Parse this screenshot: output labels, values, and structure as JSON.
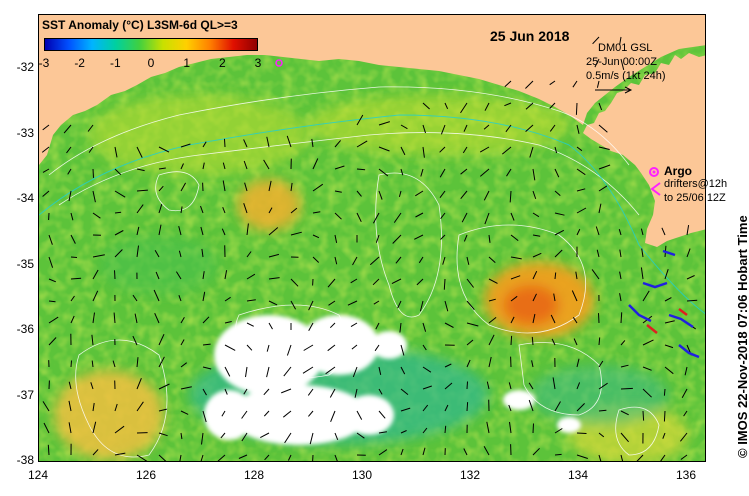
{
  "map": {
    "colorbar": {
      "title": "SST Anomaly (°C) L3SM-6d QL>=3",
      "ticks": [
        "-3",
        "-2",
        "-1",
        "0",
        "1",
        "2",
        "3"
      ],
      "colors": [
        "#0000b0",
        "#0050ff",
        "#00b4ff",
        "#00d0a0",
        "#40d040",
        "#c8e000",
        "#ffd000",
        "#ff8000",
        "#e01000",
        "#900000"
      ]
    },
    "date": "25 Jun 2018",
    "current_info": {
      "source": "DM01 GSL",
      "time": "25-Jun 00:00Z",
      "scale": "0.5m/s (1kt 24h)"
    },
    "argo": {
      "label": "Argo",
      "drifters_line1": "drifters@12h",
      "drifters_line2": "to 25/06 12Z"
    },
    "credit": "© IMOS 22-Nov-2018 07:06 Hobart Time",
    "latitude_ticks": [
      "-32",
      "-33",
      "-34",
      "-35",
      "-36",
      "-37",
      "-38"
    ],
    "longitude_ticks": [
      "124",
      "126",
      "128",
      "130",
      "132",
      "134",
      "136"
    ],
    "colors": {
      "land": "#fcc797",
      "sea_base": "#5cc33a",
      "cloud": "#ffffff",
      "contour": "#ffffff"
    }
  }
}
